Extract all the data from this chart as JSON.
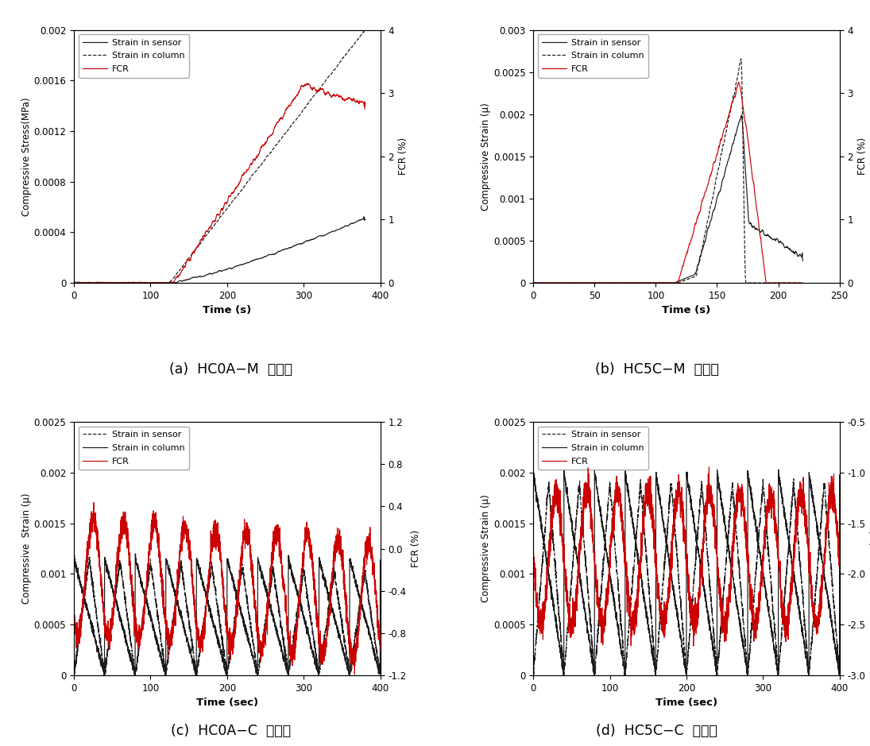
{
  "subplots": [
    {
      "id": "a",
      "title": "(a)  HC0A−M  실험체",
      "xlabel": "Time (s)",
      "ylabel_left": "Compressive Stress(MPa)",
      "ylabel_right": "FCR (%)",
      "xlim": [
        0,
        400
      ],
      "ylim_left": [
        0,
        0.002
      ],
      "ylim_right": [
        0,
        4
      ],
      "yticks_left": [
        0,
        0.0004,
        0.0008,
        0.0012,
        0.0016,
        0.002
      ],
      "yticks_right": [
        0,
        1,
        2,
        3,
        4
      ],
      "xticks": [
        0,
        100,
        200,
        300,
        400
      ],
      "sensor_style": "solid",
      "column_style": "dashed",
      "legend_sensor": "Strain in sensor",
      "legend_column": "Strain in column",
      "legend_fcr": "FCR"
    },
    {
      "id": "b",
      "title": "(b)  HC5C−M  실험체",
      "xlabel": "Time (s)",
      "ylabel_left": "Compressive Strain (μ)",
      "ylabel_right": "FCR (%)",
      "xlim": [
        0,
        250
      ],
      "ylim_left": [
        0,
        0.003
      ],
      "ylim_right": [
        0,
        4
      ],
      "yticks_left": [
        0,
        0.0005,
        0.001,
        0.0015,
        0.002,
        0.0025,
        0.003
      ],
      "yticks_right": [
        0,
        1,
        2,
        3,
        4
      ],
      "xticks": [
        0,
        50,
        100,
        150,
        200,
        250
      ],
      "sensor_style": "solid",
      "column_style": "dashed",
      "legend_sensor": "Strain in sensor",
      "legend_column": "Strain in column",
      "legend_fcr": "FCR"
    },
    {
      "id": "c",
      "title": "(c)  HC0A−C  실험체",
      "xlabel": "Time (sec)",
      "ylabel_left": "Compressive  Strain (μ)",
      "ylabel_right": "FCR (%)",
      "xlim": [
        0,
        400
      ],
      "ylim_left": [
        0,
        0.0025
      ],
      "ylim_right": [
        -1.2,
        1.2
      ],
      "yticks_left": [
        0,
        0.0005,
        0.001,
        0.0015,
        0.002,
        0.0025
      ],
      "yticks_right": [
        -1.2,
        -0.8,
        -0.4,
        0,
        0.4,
        0.8,
        1.2
      ],
      "xticks": [
        0,
        100,
        200,
        300,
        400
      ],
      "sensor_style": "dashed",
      "column_style": "solid",
      "legend_sensor": "Strain in sensor",
      "legend_column": "Strain in column",
      "legend_fcr": "FCR"
    },
    {
      "id": "d",
      "title": "(d)  HC5C−C  실험체",
      "xlabel": "Time (sec)",
      "ylabel_left": "Compressive Strain (μ)",
      "ylabel_right": "FCR (%)",
      "xlim": [
        0,
        400
      ],
      "ylim_left": [
        0,
        0.0025
      ],
      "ylim_right": [
        -3,
        -0.5
      ],
      "yticks_left": [
        0,
        0.0005,
        0.001,
        0.0015,
        0.002,
        0.0025
      ],
      "yticks_right": [
        -3,
        -2.5,
        -2,
        -1.5,
        -1,
        -0.5
      ],
      "xticks": [
        0,
        100,
        200,
        300,
        400
      ],
      "sensor_style": "dashed",
      "column_style": "solid",
      "legend_sensor": "Strain in sensor",
      "legend_column": "Strain in column",
      "legend_fcr": "FCR"
    }
  ],
  "colors": {
    "sensor": "#1a1a1a",
    "column": "#1a1a1a",
    "fcr": "#cc0000"
  },
  "font_size": 8.5,
  "caption_font_size": 12.5,
  "lw": 0.85
}
